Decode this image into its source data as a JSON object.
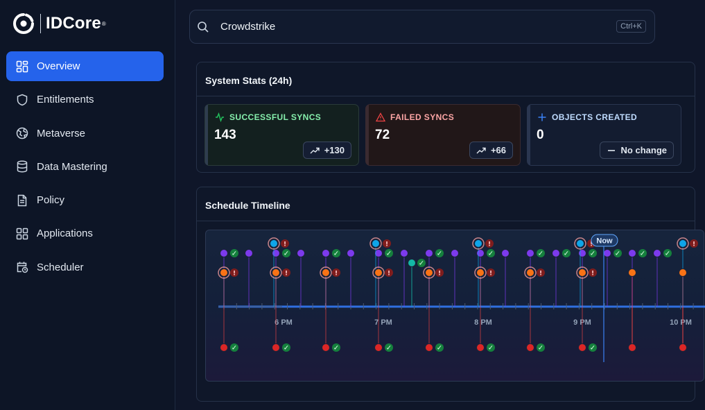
{
  "app": {
    "logo_text": "IDCore",
    "logo_reg": "®"
  },
  "sidebar": {
    "items": [
      {
        "label": "Overview",
        "icon": "grid-icon",
        "active": true
      },
      {
        "label": "Entitlements",
        "icon": "shield-icon",
        "active": false
      },
      {
        "label": "Metaverse",
        "icon": "globe-icon",
        "active": false
      },
      {
        "label": "Data Mastering",
        "icon": "database-icon",
        "active": false
      },
      {
        "label": "Policy",
        "icon": "document-icon",
        "active": false
      },
      {
        "label": "Applications",
        "icon": "apps-grid-icon",
        "active": false
      },
      {
        "label": "Scheduler",
        "icon": "calendar-clock-icon",
        "active": false
      }
    ]
  },
  "search": {
    "value": "Crowdstrike",
    "shortcut": "Ctrl+K"
  },
  "stats": {
    "title": "System Stats (24h)",
    "cards": [
      {
        "title": "SUCCESSFUL SYNCS",
        "value": "143",
        "change": "+130",
        "icon": "activity-icon",
        "color": "#22c55e"
      },
      {
        "title": "FAILED SYNCS",
        "value": "72",
        "change": "+66",
        "icon": "warning-icon",
        "color": "#ef4444"
      },
      {
        "title": "OBJECTS CREATED",
        "value": "0",
        "change": "No change",
        "icon": "plus-icon",
        "color": "#3b82f6"
      }
    ]
  },
  "timeline": {
    "title": "Schedule Timeline",
    "now_label": "Now",
    "hour_labels": [
      "6 PM",
      "7 PM",
      "8 PM",
      "9 PM",
      "10 PM"
    ]
  },
  "colors": {
    "accent": "#2563eb",
    "success": "#22c55e",
    "error": "#ef4444",
    "purple": "#7c3aed",
    "orange": "#f97316",
    "cyan": "#0ea5e9",
    "teal": "#14b8a6"
  }
}
